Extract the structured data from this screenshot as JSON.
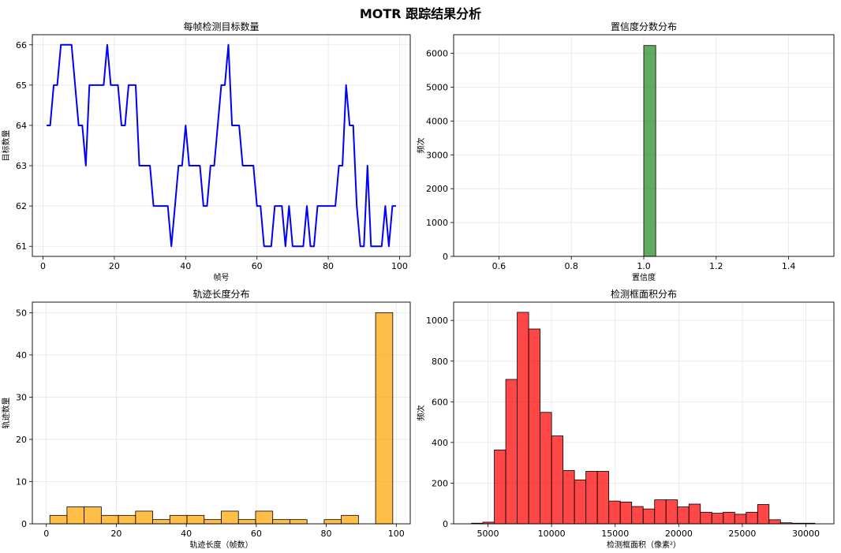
{
  "figure": {
    "title": "MOTR 跟踪结果分析"
  },
  "chart_data": [
    {
      "type": "line",
      "title": "每帧检测目标数量",
      "xlabel": "帧号",
      "ylabel": "目标数量",
      "xlim": [
        -3,
        103
      ],
      "ylim": [
        60.75,
        66.25
      ],
      "xticks": [
        0,
        20,
        40,
        60,
        80,
        100
      ],
      "yticks": [
        61,
        62,
        63,
        64,
        65,
        66
      ],
      "grid": true,
      "color": "#0000ff",
      "x": [
        1,
        2,
        3,
        4,
        5,
        6,
        7,
        8,
        9,
        10,
        11,
        12,
        13,
        14,
        15,
        16,
        17,
        18,
        19,
        20,
        21,
        22,
        23,
        24,
        25,
        26,
        27,
        28,
        29,
        30,
        31,
        32,
        33,
        34,
        35,
        36,
        37,
        38,
        39,
        40,
        41,
        42,
        43,
        44,
        45,
        46,
        47,
        48,
        49,
        50,
        51,
        52,
        53,
        54,
        55,
        56,
        57,
        58,
        59,
        60,
        61,
        62,
        63,
        64,
        65,
        66,
        67,
        68,
        69,
        70,
        71,
        72,
        73,
        74,
        75,
        76,
        77,
        78,
        79,
        80,
        81,
        82,
        83,
        84,
        85,
        86,
        87,
        88,
        89,
        90,
        91,
        92,
        93,
        94,
        95,
        96,
        97,
        98,
        99
      ],
      "y": [
        64,
        64,
        65,
        65,
        66,
        66,
        66,
        66,
        65,
        64,
        64,
        63,
        65,
        65,
        65,
        65,
        65,
        66,
        65,
        65,
        65,
        64,
        64,
        65,
        65,
        65,
        63,
        63,
        63,
        63,
        62,
        62,
        62,
        62,
        62,
        61,
        62,
        63,
        63,
        64,
        63,
        63,
        63,
        63,
        62,
        62,
        63,
        63,
        64,
        65,
        65,
        66,
        64,
        64,
        64,
        63,
        63,
        63,
        63,
        62,
        62,
        61,
        61,
        61,
        62,
        62,
        62,
        61,
        62,
        61,
        61,
        61,
        61,
        62,
        61,
        61,
        62,
        62,
        62,
        62,
        62,
        62,
        63,
        63,
        65,
        64,
        64,
        62,
        61,
        61,
        63,
        61,
        61,
        61,
        61,
        62,
        61,
        62,
        62
      ]
    },
    {
      "type": "bar",
      "title": "置信度分数分布",
      "xlabel": "置信度",
      "ylabel": "频次",
      "xlim": [
        0.475,
        1.525
      ],
      "ylim": [
        0,
        6550
      ],
      "xticks": [
        0.6,
        0.8,
        1.0,
        1.2,
        1.4
      ],
      "xticklabels": [
        "0.6",
        "0.8",
        "1.0",
        "1.2",
        "1.4"
      ],
      "yticks": [
        0,
        1000,
        2000,
        3000,
        4000,
        5000,
        6000
      ],
      "grid": true,
      "color": "#228b22",
      "bins": [
        [
          1.0,
          1.033
        ]
      ],
      "values": [
        6230
      ]
    },
    {
      "type": "bar",
      "title": "轨迹长度分布",
      "xlabel": "轨迹长度（帧数）",
      "ylabel": "轨迹数量",
      "xlim": [
        -4,
        104
      ],
      "ylim": [
        0,
        52.5
      ],
      "xticks": [
        0,
        20,
        40,
        60,
        80,
        100
      ],
      "yticks": [
        0,
        10,
        20,
        30,
        40,
        50
      ],
      "grid": true,
      "color": "#ffa500",
      "bins": [
        [
          1,
          5.9
        ],
        [
          5.9,
          10.8
        ],
        [
          10.8,
          15.7
        ],
        [
          15.7,
          20.6
        ],
        [
          20.6,
          25.5
        ],
        [
          25.5,
          30.4
        ],
        [
          30.4,
          35.3
        ],
        [
          35.3,
          40.2
        ],
        [
          40.2,
          45.1
        ],
        [
          45.1,
          50
        ],
        [
          50,
          54.9
        ],
        [
          54.9,
          59.8
        ],
        [
          59.8,
          64.7
        ],
        [
          64.7,
          69.6
        ],
        [
          69.6,
          74.5
        ],
        [
          74.5,
          79.4
        ],
        [
          79.4,
          84.3
        ],
        [
          84.3,
          89.2
        ],
        [
          89.2,
          94.1
        ],
        [
          94.1,
          99
        ]
      ],
      "values": [
        2,
        4,
        4,
        2,
        2,
        3,
        1,
        2,
        2,
        1,
        3,
        1,
        3,
        1,
        1,
        0,
        1,
        2,
        0,
        50
      ]
    },
    {
      "type": "bar",
      "title": "检测框面积分布",
      "xlabel": "检测框面积（像素²）",
      "ylabel": "频次",
      "xlim": [
        2300,
        32200
      ],
      "ylim": [
        0,
        1090
      ],
      "xticks": [
        5000,
        10000,
        15000,
        20000,
        25000,
        30000
      ],
      "yticks": [
        0,
        200,
        400,
        600,
        800,
        1000
      ],
      "grid": true,
      "color": "#ff0000",
      "bins": [
        [
          3700,
          4600
        ],
        [
          4600,
          5500
        ],
        [
          5500,
          6400
        ],
        [
          6400,
          7300
        ],
        [
          7300,
          8200
        ],
        [
          8200,
          9100
        ],
        [
          9100,
          10000
        ],
        [
          10000,
          10900
        ],
        [
          10900,
          11800
        ],
        [
          11800,
          12700
        ],
        [
          12700,
          13600
        ],
        [
          13600,
          14500
        ],
        [
          14500,
          15400
        ],
        [
          15400,
          16300
        ],
        [
          16300,
          17200
        ],
        [
          17200,
          18100
        ],
        [
          18100,
          19000
        ],
        [
          19000,
          19900
        ],
        [
          19900,
          20800
        ],
        [
          20800,
          21700
        ],
        [
          21700,
          22600
        ],
        [
          22600,
          23500
        ],
        [
          23500,
          24400
        ],
        [
          24400,
          25300
        ],
        [
          25300,
          26200
        ],
        [
          26200,
          27100
        ],
        [
          27100,
          28000
        ],
        [
          28000,
          28900
        ],
        [
          28900,
          29800
        ],
        [
          29800,
          30700
        ]
      ],
      "values": [
        3,
        8,
        363,
        710,
        1040,
        958,
        548,
        432,
        262,
        216,
        258,
        258,
        112,
        107,
        85,
        73,
        118,
        118,
        83,
        97,
        57,
        52,
        57,
        47,
        57,
        95,
        20,
        5,
        3,
        3
      ]
    }
  ]
}
